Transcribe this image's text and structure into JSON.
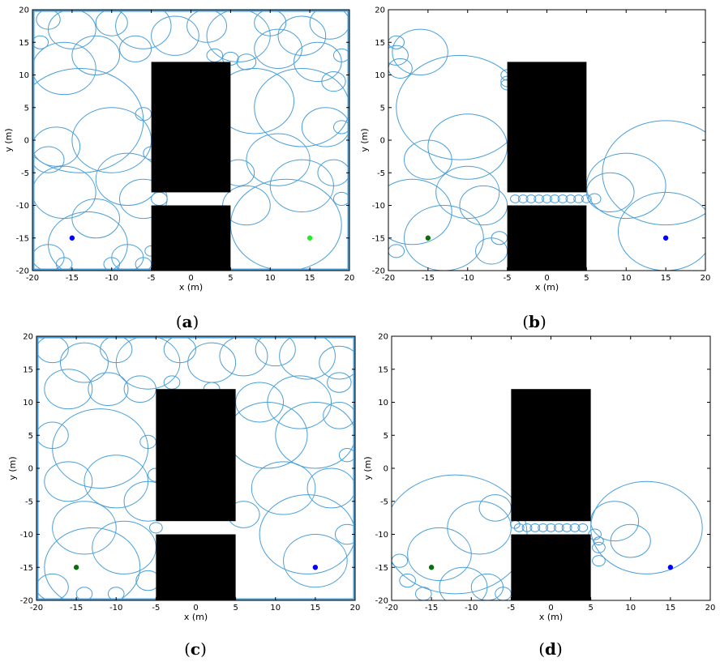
{
  "colors": {
    "circle": "#4a9fd8",
    "obstacle": "#000000",
    "start_blue": "#0000ff",
    "goal_lightgreen": "#22ee22",
    "goal_darkgreen": "#0a6e0a"
  },
  "chart_data": [
    {
      "type": "scatter",
      "caption_letter": "a",
      "xlabel": "x (m)",
      "ylabel": "y (m)",
      "xlim": [
        -20,
        20
      ],
      "ylim": [
        -20,
        20
      ],
      "xticks": [
        -20,
        -15,
        -10,
        -5,
        0,
        5,
        10,
        15,
        20
      ],
      "yticks": [
        -20,
        -15,
        -10,
        -5,
        0,
        5,
        10,
        15,
        20
      ],
      "frame_lines": true,
      "obstacles": [
        {
          "x0": -5,
          "x1": 5,
          "y0": -8,
          "y1": 12
        },
        {
          "x0": -5,
          "x1": 5,
          "y0": -20,
          "y1": -10
        }
      ],
      "points": [
        {
          "x": -15,
          "y": -15,
          "color": "#0000ff"
        },
        {
          "x": 15,
          "y": -15,
          "color": "#22ee22"
        }
      ],
      "circles": [
        [
          -18,
          18.5,
          1.5
        ],
        [
          -15,
          17,
          3
        ],
        [
          -10,
          18,
          2
        ],
        [
          -6,
          17.5,
          3.5
        ],
        [
          -2,
          16,
          3
        ],
        [
          2,
          17.5,
          2.5
        ],
        [
          6,
          16,
          4
        ],
        [
          10,
          18,
          2
        ],
        [
          14,
          16,
          3
        ],
        [
          17.5,
          18,
          2.5
        ],
        [
          -19,
          15,
          1
        ],
        [
          -12,
          13,
          3
        ],
        [
          -7,
          14,
          2
        ],
        [
          -16,
          11,
          4
        ],
        [
          3,
          13,
          1
        ],
        [
          7,
          12,
          1.2
        ],
        [
          5,
          12.5,
          1
        ],
        [
          18,
          9,
          1.5
        ],
        [
          11,
          14,
          3
        ],
        [
          16,
          12,
          3
        ],
        [
          -14,
          3,
          8
        ],
        [
          -17,
          -1,
          3
        ],
        [
          -18,
          -3,
          2
        ],
        [
          -10,
          0,
          5
        ],
        [
          -16,
          -8,
          4
        ],
        [
          -12,
          -12,
          3
        ],
        [
          -8,
          -6,
          4
        ],
        [
          -6,
          -9,
          3
        ],
        [
          -13,
          -16,
          5
        ],
        [
          -8,
          -18,
          2
        ],
        [
          -18,
          -18,
          2
        ],
        [
          -16,
          -19,
          1
        ],
        [
          -10,
          -19,
          1
        ],
        [
          -6,
          -19,
          1
        ],
        [
          -5,
          -17,
          0.8
        ],
        [
          -6,
          4,
          1
        ],
        [
          -5,
          -2,
          1
        ],
        [
          -4,
          -9,
          1
        ],
        [
          8,
          6,
          5
        ],
        [
          14,
          5,
          6
        ],
        [
          11,
          -3,
          4
        ],
        [
          17,
          2,
          3
        ],
        [
          14,
          -7,
          4
        ],
        [
          12,
          -13,
          7
        ],
        [
          7,
          -10,
          3
        ],
        [
          18,
          -5,
          2
        ],
        [
          19,
          -9,
          1
        ],
        [
          6,
          -5,
          2
        ],
        [
          19,
          2,
          1
        ],
        [
          19,
          13,
          1
        ]
      ]
    },
    {
      "type": "scatter",
      "caption_letter": "b",
      "xlabel": "x (m)",
      "ylabel": "y (m)",
      "xlim": [
        -20,
        20
      ],
      "ylim": [
        -20,
        20
      ],
      "xticks": [
        -20,
        -15,
        -10,
        -5,
        0,
        5,
        10,
        15,
        20
      ],
      "yticks": [
        -20,
        -15,
        -10,
        -5,
        0,
        5,
        10,
        15,
        20
      ],
      "frame_lines": false,
      "obstacles": [
        {
          "x0": -5,
          "x1": 5,
          "y0": -8,
          "y1": 12
        },
        {
          "x0": -5,
          "x1": 5,
          "y0": -20,
          "y1": -10
        }
      ],
      "points": [
        {
          "x": -15,
          "y": -15,
          "color": "#0a6e0a"
        },
        {
          "x": 15,
          "y": -15,
          "color": "#0000ff"
        }
      ],
      "circles": [
        [
          -16,
          13.5,
          3.5
        ],
        [
          -19,
          13,
          1.5
        ],
        [
          -18.5,
          11,
          1.5
        ],
        [
          -19,
          15,
          1
        ],
        [
          -11,
          5,
          8
        ],
        [
          -10,
          -1,
          5
        ],
        [
          -15,
          -3,
          3
        ],
        [
          -17,
          -11,
          5
        ],
        [
          -13,
          -15,
          5
        ],
        [
          -10,
          -8,
          4
        ],
        [
          -8,
          -10,
          3
        ],
        [
          -7,
          -17,
          2
        ],
        [
          -6,
          -15,
          1
        ],
        [
          -19,
          -17,
          1
        ],
        [
          -5,
          10,
          0.8
        ],
        [
          -5,
          9,
          0.8
        ],
        [
          -5,
          8.5,
          0.8
        ],
        [
          -4,
          -9,
          0.6
        ],
        [
          -3,
          -9,
          0.6
        ],
        [
          -2,
          -9,
          0.6
        ],
        [
          -1,
          -9,
          0.6
        ],
        [
          0,
          -9,
          0.6
        ],
        [
          1,
          -9,
          0.6
        ],
        [
          2,
          -9,
          0.6
        ],
        [
          3,
          -9,
          0.6
        ],
        [
          4,
          -9,
          0.6
        ],
        [
          5,
          -9,
          0.6
        ],
        [
          6,
          -9,
          0.8
        ],
        [
          10,
          -7,
          5
        ],
        [
          15,
          -5,
          8
        ],
        [
          15,
          -14,
          6
        ],
        [
          8,
          -8,
          3
        ]
      ]
    },
    {
      "type": "scatter",
      "caption_letter": "c",
      "xlabel": "x (m)",
      "ylabel": "y (m)",
      "xlim": [
        -20,
        20
      ],
      "ylim": [
        -20,
        20
      ],
      "xticks": [
        -20,
        -15,
        -10,
        -5,
        0,
        5,
        10,
        15,
        20
      ],
      "yticks": [
        -20,
        -15,
        -10,
        -5,
        0,
        5,
        10,
        15,
        20
      ],
      "frame_lines": true,
      "obstacles": [
        {
          "x0": -5,
          "x1": 5,
          "y0": -8,
          "y1": 12
        },
        {
          "x0": -5,
          "x1": 5,
          "y0": -20,
          "y1": -10
        }
      ],
      "points": [
        {
          "x": -15,
          "y": -15,
          "color": "#0a6e0a"
        },
        {
          "x": 15,
          "y": -15,
          "color": "#0000ff"
        }
      ],
      "circles": [
        [
          -18,
          18,
          2
        ],
        [
          -14,
          16,
          3
        ],
        [
          -10,
          18,
          2
        ],
        [
          -6,
          16,
          4
        ],
        [
          -2,
          18,
          2
        ],
        [
          2,
          16,
          3
        ],
        [
          6,
          17,
          3
        ],
        [
          10,
          18,
          2.5
        ],
        [
          14,
          17,
          3.5
        ],
        [
          18,
          16,
          2.5
        ],
        [
          -16,
          12,
          3
        ],
        [
          -11,
          12,
          2.5
        ],
        [
          -7,
          12,
          2
        ],
        [
          -3,
          13,
          1
        ],
        [
          2,
          12,
          1
        ],
        [
          8,
          10,
          3
        ],
        [
          13,
          10,
          4
        ],
        [
          18,
          8,
          2
        ],
        [
          -18,
          5,
          2
        ],
        [
          -12,
          3,
          6
        ],
        [
          -16,
          -2,
          3
        ],
        [
          -10,
          -2,
          4
        ],
        [
          -6,
          -5,
          3
        ],
        [
          -14,
          -9,
          4
        ],
        [
          -9,
          -12,
          4
        ],
        [
          -13,
          -15,
          6
        ],
        [
          -18,
          -18,
          2
        ],
        [
          -14,
          -19,
          1
        ],
        [
          -10,
          -19,
          1
        ],
        [
          -6,
          -17,
          1.5
        ],
        [
          -5,
          -9,
          0.8
        ],
        [
          -6,
          4,
          1
        ],
        [
          -5,
          -1,
          1
        ],
        [
          9,
          5,
          5
        ],
        [
          15,
          5,
          5
        ],
        [
          11,
          -3,
          4
        ],
        [
          17,
          -3,
          3
        ],
        [
          14,
          -10,
          6
        ],
        [
          15,
          -14,
          4
        ],
        [
          19,
          -10,
          1.5
        ],
        [
          6,
          -7,
          2
        ],
        [
          19,
          2,
          1
        ],
        [
          18,
          13,
          1.5
        ]
      ]
    },
    {
      "type": "scatter",
      "caption_letter": "d",
      "xlabel": "x (m)",
      "ylabel": "y (m)",
      "xlim": [
        -20,
        20
      ],
      "ylim": [
        -20,
        20
      ],
      "xticks": [
        -20,
        -15,
        -10,
        -5,
        0,
        5,
        10,
        15,
        20
      ],
      "yticks": [
        -20,
        -15,
        -10,
        -5,
        0,
        5,
        10,
        15,
        20
      ],
      "frame_lines": false,
      "obstacles": [
        {
          "x0": -5,
          "x1": 5,
          "y0": -8,
          "y1": 12
        },
        {
          "x0": -5,
          "x1": 5,
          "y0": -20,
          "y1": -10
        }
      ],
      "points": [
        {
          "x": -15,
          "y": -15,
          "color": "#0a6e0a"
        },
        {
          "x": 15,
          "y": -15,
          "color": "#0000ff"
        }
      ],
      "circles": [
        [
          -12,
          -10,
          9
        ],
        [
          -9,
          -9,
          4
        ],
        [
          -7,
          -6,
          2
        ],
        [
          -14,
          -13,
          4
        ],
        [
          -11,
          -18,
          3
        ],
        [
          -8,
          -18,
          2
        ],
        [
          -6,
          -19,
          1
        ],
        [
          -18,
          -17,
          1
        ],
        [
          -19,
          -14,
          1
        ],
        [
          -16,
          -19,
          1
        ],
        [
          -4,
          -9,
          0.6
        ],
        [
          -3,
          -9,
          0.6
        ],
        [
          -2,
          -9,
          0.6
        ],
        [
          -1,
          -9,
          0.6
        ],
        [
          0,
          -9,
          0.6
        ],
        [
          1,
          -9,
          0.6
        ],
        [
          2,
          -9,
          0.6
        ],
        [
          3,
          -9,
          0.6
        ],
        [
          4,
          -9,
          0.6
        ],
        [
          -4.5,
          -8.5,
          0.6
        ],
        [
          5.5,
          -10,
          0.8
        ],
        [
          6,
          -12,
          0.8
        ],
        [
          6,
          -14,
          0.8
        ],
        [
          6,
          -11,
          0.6
        ],
        [
          12,
          -9,
          7
        ],
        [
          8,
          -8,
          3
        ],
        [
          10,
          -11,
          2.5
        ]
      ]
    }
  ]
}
